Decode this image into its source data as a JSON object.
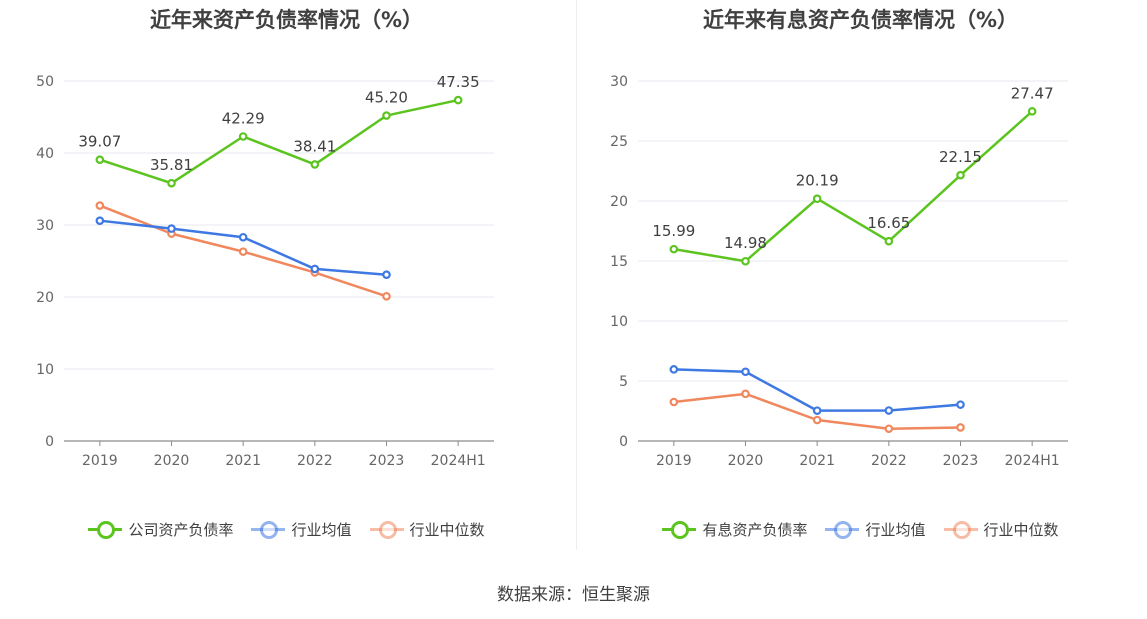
{
  "source": "数据来源：恒生聚源",
  "chart_data": [
    {
      "type": "line",
      "title": "近年来资产负债率情况（%）",
      "xlabel": "",
      "ylabel": "",
      "categories": [
        "2019",
        "2020",
        "2021",
        "2022",
        "2023",
        "2024H1"
      ],
      "ylim": [
        0,
        50
      ],
      "yticks": [
        0,
        10,
        20,
        30,
        40,
        50
      ],
      "grid": true,
      "legend": "bottom",
      "series": [
        {
          "name": "公司资产负债率",
          "color": "#5cc41f",
          "labels": true,
          "values": [
            39.07,
            35.81,
            42.29,
            38.41,
            45.2,
            47.35
          ],
          "value_labels": [
            "39.07",
            "35.81",
            "42.29",
            "38.41",
            "45.20",
            "47.35"
          ]
        },
        {
          "name": "行业均值",
          "color": "#3d78e3",
          "labels": false,
          "values": [
            30.6,
            29.5,
            28.3,
            23.9,
            23.1,
            null
          ]
        },
        {
          "name": "行业中位数",
          "color": "#f0875d",
          "labels": false,
          "values": [
            32.7,
            28.8,
            26.3,
            23.4,
            20.1,
            null
          ]
        }
      ]
    },
    {
      "type": "line",
      "title": "近年来有息资产负债率情况（%）",
      "xlabel": "",
      "ylabel": "",
      "categories": [
        "2019",
        "2020",
        "2021",
        "2022",
        "2023",
        "2024H1"
      ],
      "ylim": [
        0,
        30
      ],
      "yticks": [
        0,
        5,
        10,
        15,
        20,
        25,
        30
      ],
      "grid": true,
      "legend": "bottom",
      "series": [
        {
          "name": "有息资产负债率",
          "color": "#5cc41f",
          "labels": true,
          "values": [
            15.99,
            14.98,
            20.19,
            16.65,
            22.15,
            27.47
          ],
          "value_labels": [
            "15.99",
            "14.98",
            "20.19",
            "16.65",
            "22.15",
            "27.47"
          ]
        },
        {
          "name": "行业均值",
          "color": "#3d78e3",
          "labels": false,
          "values": [
            5.97,
            5.77,
            2.53,
            2.54,
            3.03,
            null
          ]
        },
        {
          "name": "行业中位数",
          "color": "#f0875d",
          "labels": false,
          "values": [
            3.25,
            3.93,
            1.75,
            1.02,
            1.13,
            null
          ]
        }
      ]
    }
  ]
}
